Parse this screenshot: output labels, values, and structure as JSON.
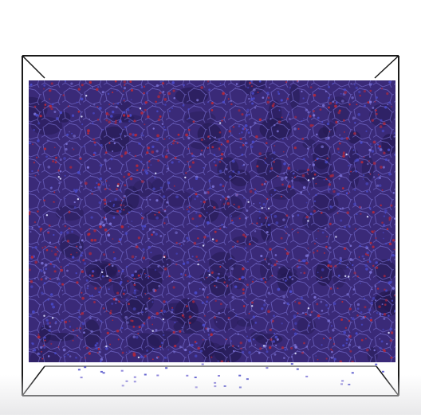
{
  "scene": {
    "description_free": true,
    "colors": {
      "background": "#ffffff",
      "box_edge": "#1a1a1a",
      "network_base": "#3a2a78",
      "network_dark": "#241a52",
      "atom_red": "#b0283c",
      "atom_blue": "#4a4ac8",
      "atom_pale": "#cfd0f2",
      "strand": "#7b72d6"
    },
    "render": {
      "perspective_box": true,
      "cell_density": 1500,
      "stray_particles": 34
    }
  }
}
